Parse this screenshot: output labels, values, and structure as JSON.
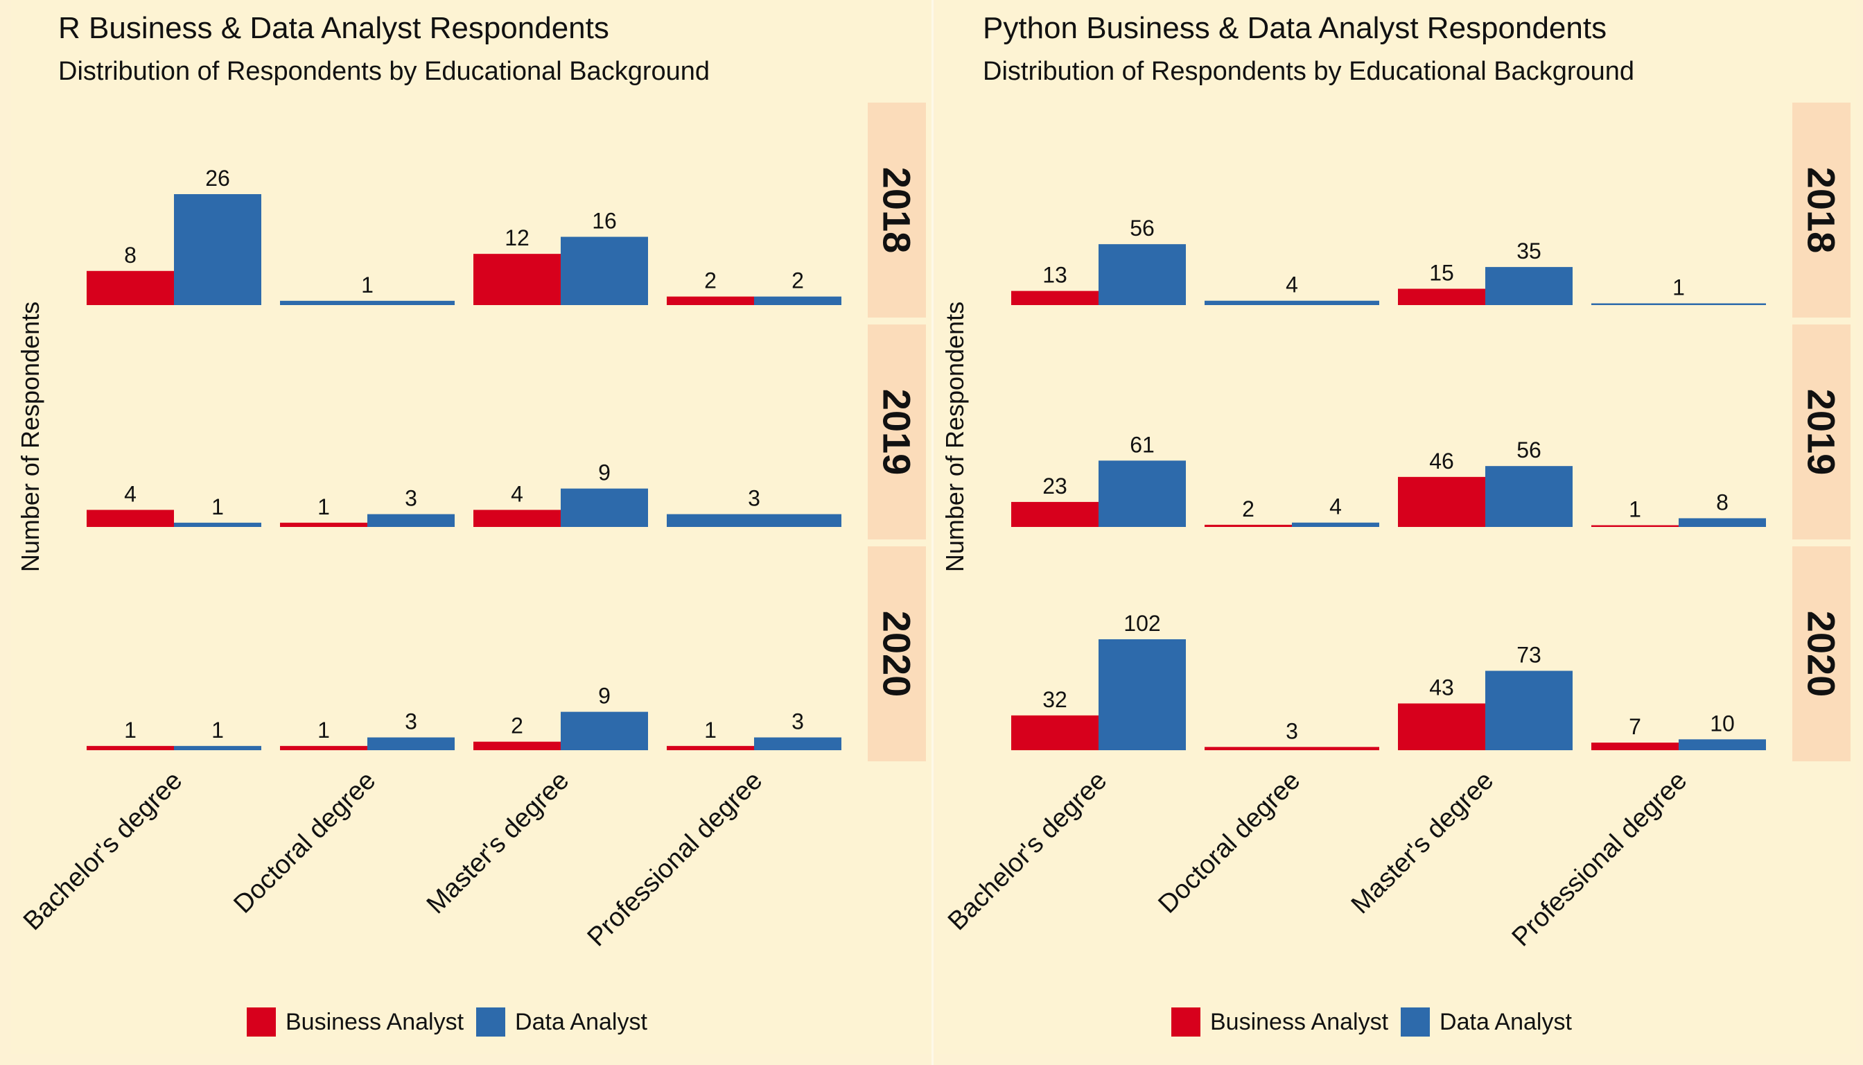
{
  "chart_data": [
    {
      "type": "bar",
      "title": "R Business & Data Analyst Respondents",
      "subtitle": "Distribution of Respondents by Educational Background",
      "ylabel": "Number of Respondents",
      "categories": [
        "Bachelor's degree",
        "Doctoral degree",
        "Master's degree",
        "Professional degree"
      ],
      "legend": [
        "Business Analyst",
        "Data Analyst"
      ],
      "legend_position": "bottom",
      "colors": {
        "Business Analyst": "#d7001c",
        "Data Analyst": "#2d6aab"
      },
      "ylim": [
        0,
        26
      ],
      "facets": [
        {
          "label": "2018",
          "series": [
            {
              "name": "Business Analyst",
              "values": [
                8,
                null,
                12,
                2
              ]
            },
            {
              "name": "Data Analyst",
              "values": [
                26,
                1,
                16,
                2
              ]
            }
          ]
        },
        {
          "label": "2019",
          "series": [
            {
              "name": "Business Analyst",
              "values": [
                4,
                1,
                4,
                null
              ]
            },
            {
              "name": "Data Analyst",
              "values": [
                1,
                3,
                9,
                3
              ]
            }
          ]
        },
        {
          "label": "2020",
          "series": [
            {
              "name": "Business Analyst",
              "values": [
                1,
                1,
                2,
                1
              ]
            },
            {
              "name": "Data Analyst",
              "values": [
                1,
                3,
                9,
                3
              ]
            }
          ]
        }
      ]
    },
    {
      "type": "bar",
      "title": "Python Business & Data Analyst Respondents",
      "subtitle": "Distribution of Respondents by Educational Background",
      "ylabel": "Number of Respondents",
      "categories": [
        "Bachelor's degree",
        "Doctoral degree",
        "Master's degree",
        "Professional degree"
      ],
      "legend": [
        "Business Analyst",
        "Data Analyst"
      ],
      "legend_position": "bottom",
      "colors": {
        "Business Analyst": "#d7001c",
        "Data Analyst": "#2d6aab"
      },
      "ylim": [
        0,
        102
      ],
      "facets": [
        {
          "label": "2018",
          "series": [
            {
              "name": "Business Analyst",
              "values": [
                13,
                null,
                15,
                null
              ]
            },
            {
              "name": "Data Analyst",
              "values": [
                56,
                4,
                35,
                1
              ]
            }
          ]
        },
        {
          "label": "2019",
          "series": [
            {
              "name": "Business Analyst",
              "values": [
                23,
                2,
                46,
                1
              ]
            },
            {
              "name": "Data Analyst",
              "values": [
                61,
                4,
                56,
                8
              ]
            }
          ]
        },
        {
          "label": "2020",
          "series": [
            {
              "name": "Business Analyst",
              "values": [
                32,
                3,
                43,
                7
              ]
            },
            {
              "name": "Data Analyst",
              "values": [
                102,
                null,
                73,
                10
              ]
            }
          ]
        }
      ]
    }
  ]
}
